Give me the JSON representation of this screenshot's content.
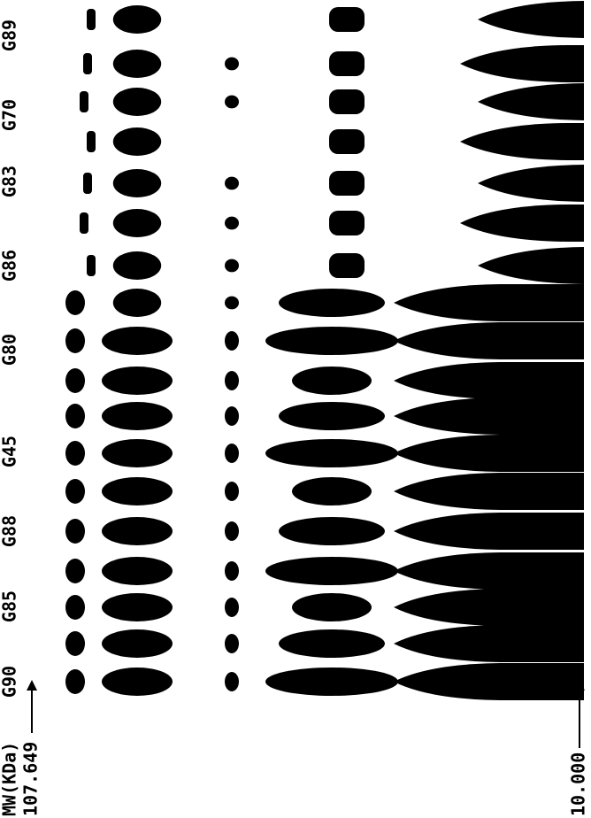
{
  "labels": {
    "mw": "MW(KDa)",
    "top_marker": "107.649",
    "bottom_marker": "10.000",
    "lanes": [
      "G90",
      "G85",
      "G88",
      "G45",
      "G80",
      "G86",
      "G83",
      "G70",
      "G89"
    ]
  }
}
